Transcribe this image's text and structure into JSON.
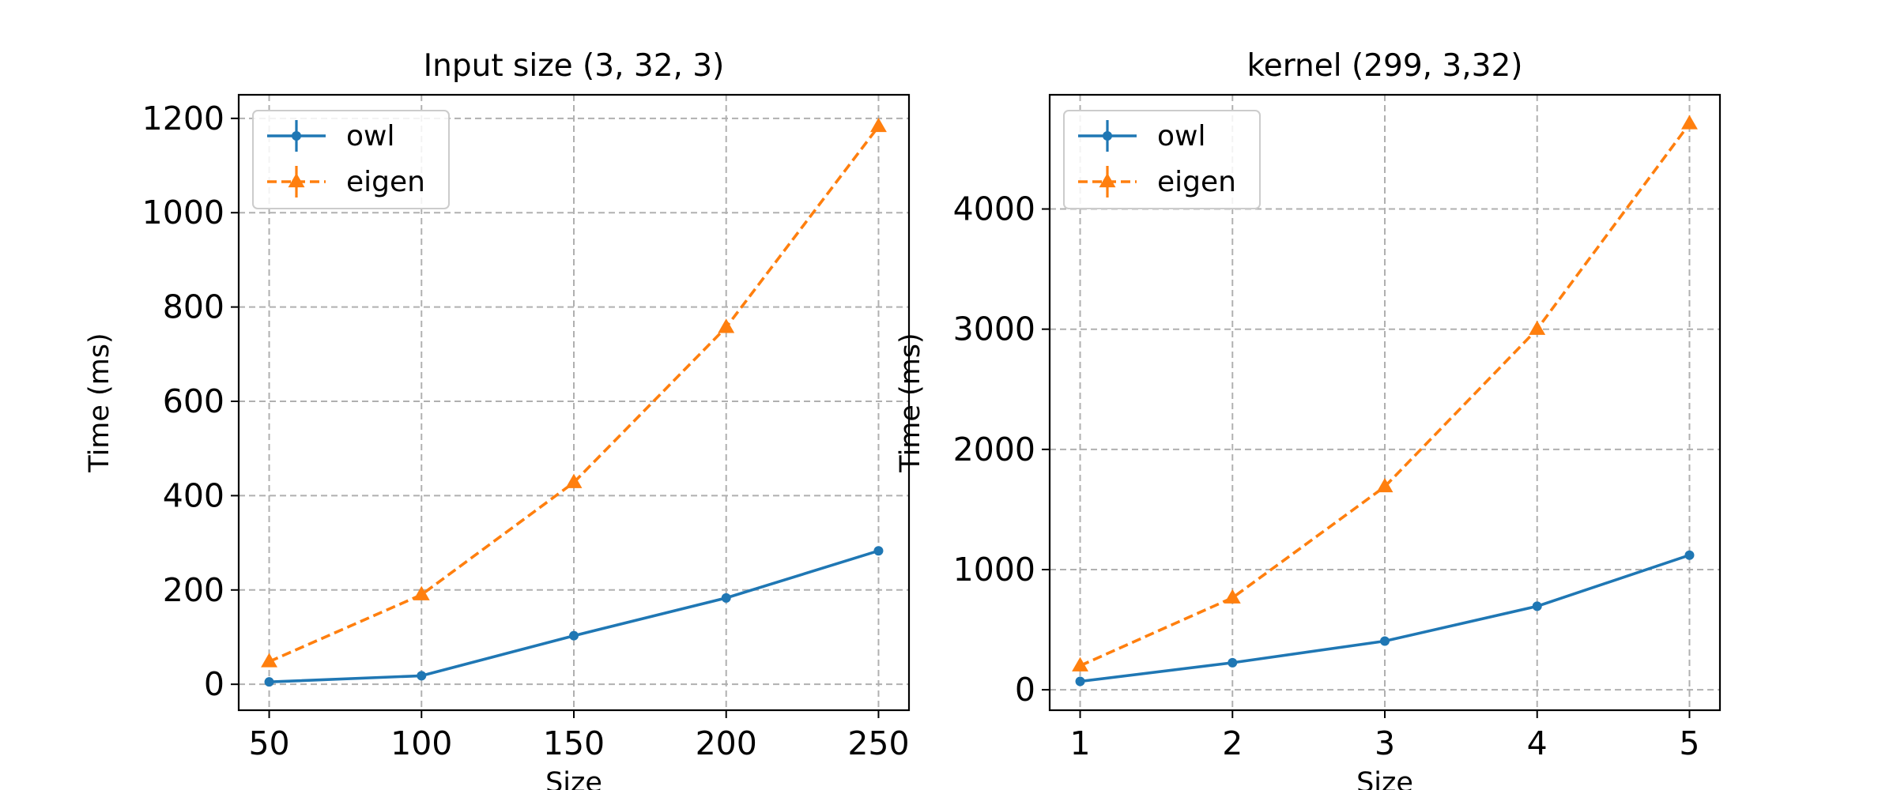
{
  "chart_data": [
    {
      "type": "line",
      "title": "Input size (3, 32, 3)",
      "xlabel": "Size",
      "ylabel": "Time (ms)",
      "x": [
        50,
        100,
        150,
        200,
        250
      ],
      "xlim": [
        40,
        260
      ],
      "ylim": [
        -55,
        1250
      ],
      "xticks": [
        50,
        100,
        150,
        200,
        250
      ],
      "yticks": [
        0,
        200,
        400,
        600,
        800,
        1000,
        1200
      ],
      "grid": true,
      "legend_position": "top-left",
      "series": [
        {
          "name": "owl",
          "values": [
            5,
            18,
            103,
            183,
            283
          ],
          "color": "#1f77b4",
          "style": "solid",
          "marker": "circle"
        },
        {
          "name": "eigen",
          "values": [
            48,
            190,
            428,
            757,
            1183
          ],
          "color": "#ff7f0e",
          "style": "dashed",
          "marker": "triangle"
        }
      ]
    },
    {
      "type": "line",
      "title": "kernel (299, 3,32)",
      "xlabel": "Size",
      "ylabel": "Time (ms)",
      "x": [
        1,
        2,
        3,
        4,
        5
      ],
      "xlim": [
        0.8,
        5.2
      ],
      "ylim": [
        -170,
        4950
      ],
      "xticks": [
        1,
        2,
        3,
        4,
        5
      ],
      "yticks": [
        0,
        1000,
        2000,
        3000,
        4000
      ],
      "grid": true,
      "legend_position": "top-left",
      "series": [
        {
          "name": "owl",
          "values": [
            70,
            225,
            405,
            695,
            1120
          ],
          "color": "#1f77b4",
          "style": "solid",
          "marker": "circle"
        },
        {
          "name": "eigen",
          "values": [
            200,
            765,
            1690,
            3000,
            4710
          ],
          "color": "#ff7f0e",
          "style": "dashed",
          "marker": "triangle"
        }
      ]
    }
  ]
}
